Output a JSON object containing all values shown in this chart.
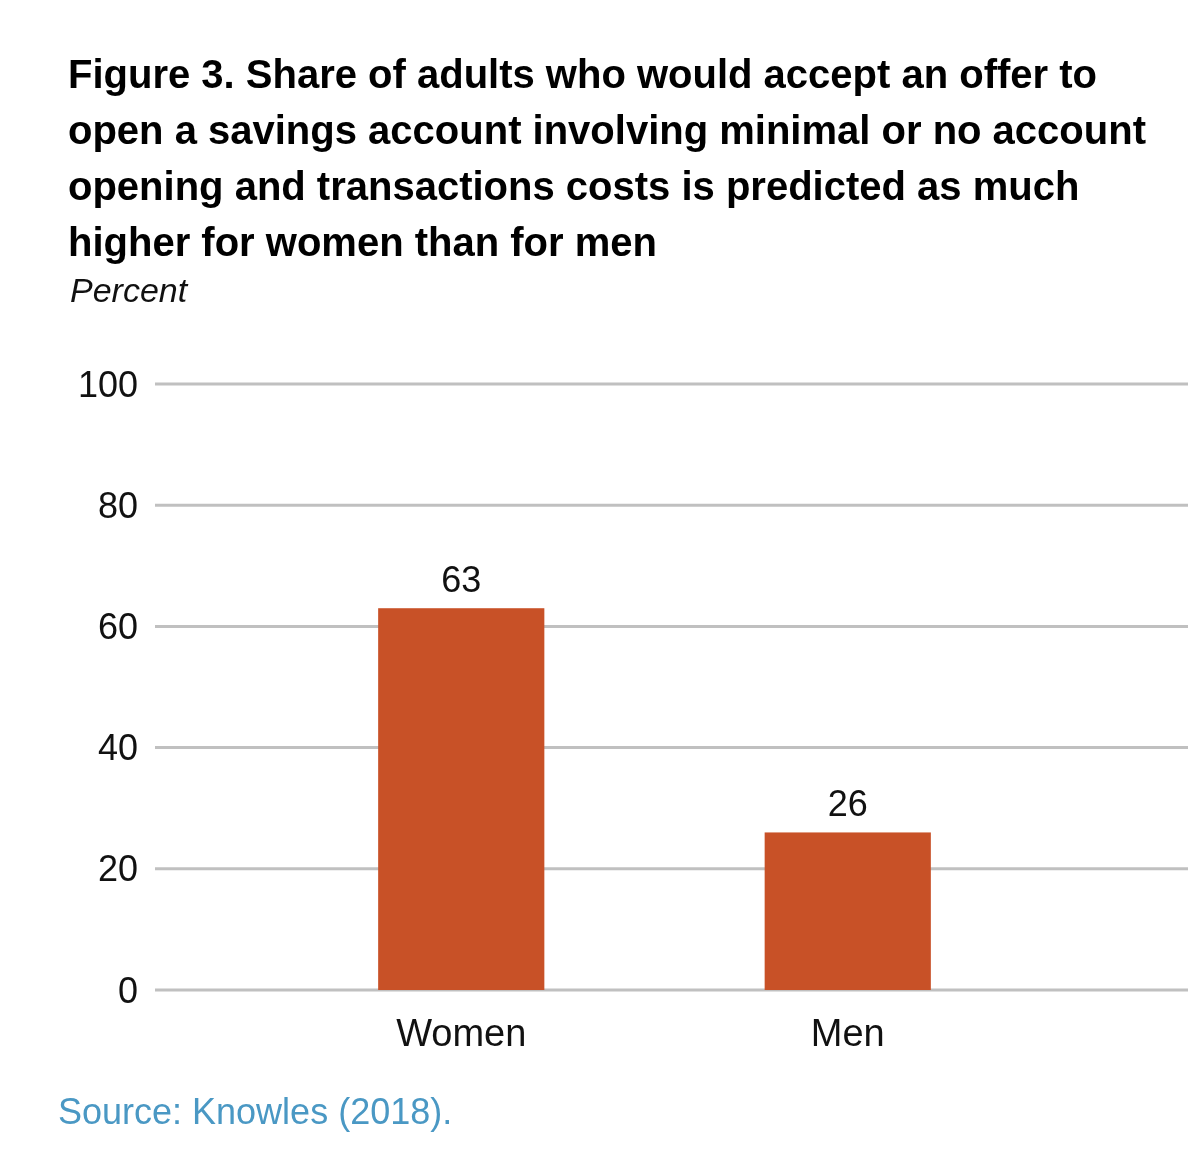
{
  "chart_data": {
    "type": "bar",
    "title": "Figure 3. Share of adults who would accept an offer to open a savings account involving minimal or no account opening and transactions costs is predicted as much higher for women than for men",
    "ylabel": "Percent",
    "categories": [
      "Women",
      "Men"
    ],
    "values": [
      63,
      26
    ],
    "color": "#c85127",
    "ylim": [
      0,
      100
    ],
    "yticks": [
      0,
      20,
      40,
      60,
      80,
      100
    ],
    "grid": "y",
    "data_labels": true,
    "annotations": [
      "Source: Knowles (2018)."
    ]
  }
}
